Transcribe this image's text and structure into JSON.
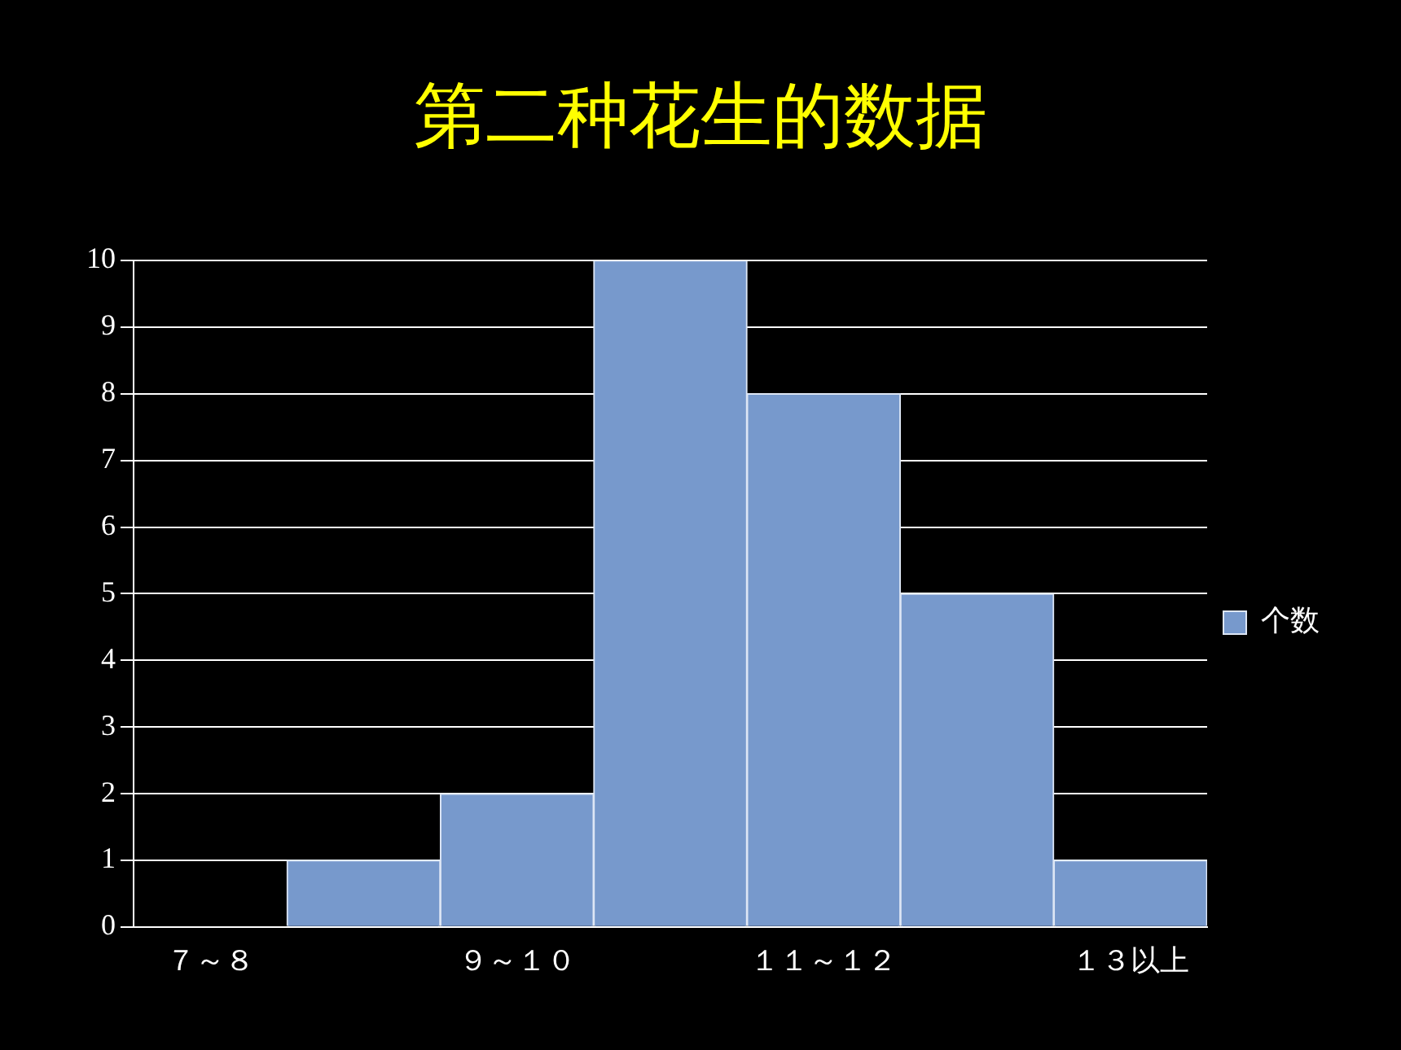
{
  "chart_data": {
    "type": "bar",
    "title": "第二种花生的数据",
    "categories": [
      "７～８",
      null,
      "９～１０",
      null,
      "１１～１２",
      null,
      "１３以上"
    ],
    "series": [
      {
        "name": "个数",
        "color": "#7799cc",
        "values": [
          0,
          1,
          2,
          10,
          8,
          5,
          1
        ]
      }
    ],
    "ylim": [
      0,
      10
    ],
    "yticks": [
      0,
      1,
      2,
      3,
      4,
      5,
      6,
      7,
      8,
      9,
      10
    ],
    "grid": "y",
    "legend": "right"
  }
}
